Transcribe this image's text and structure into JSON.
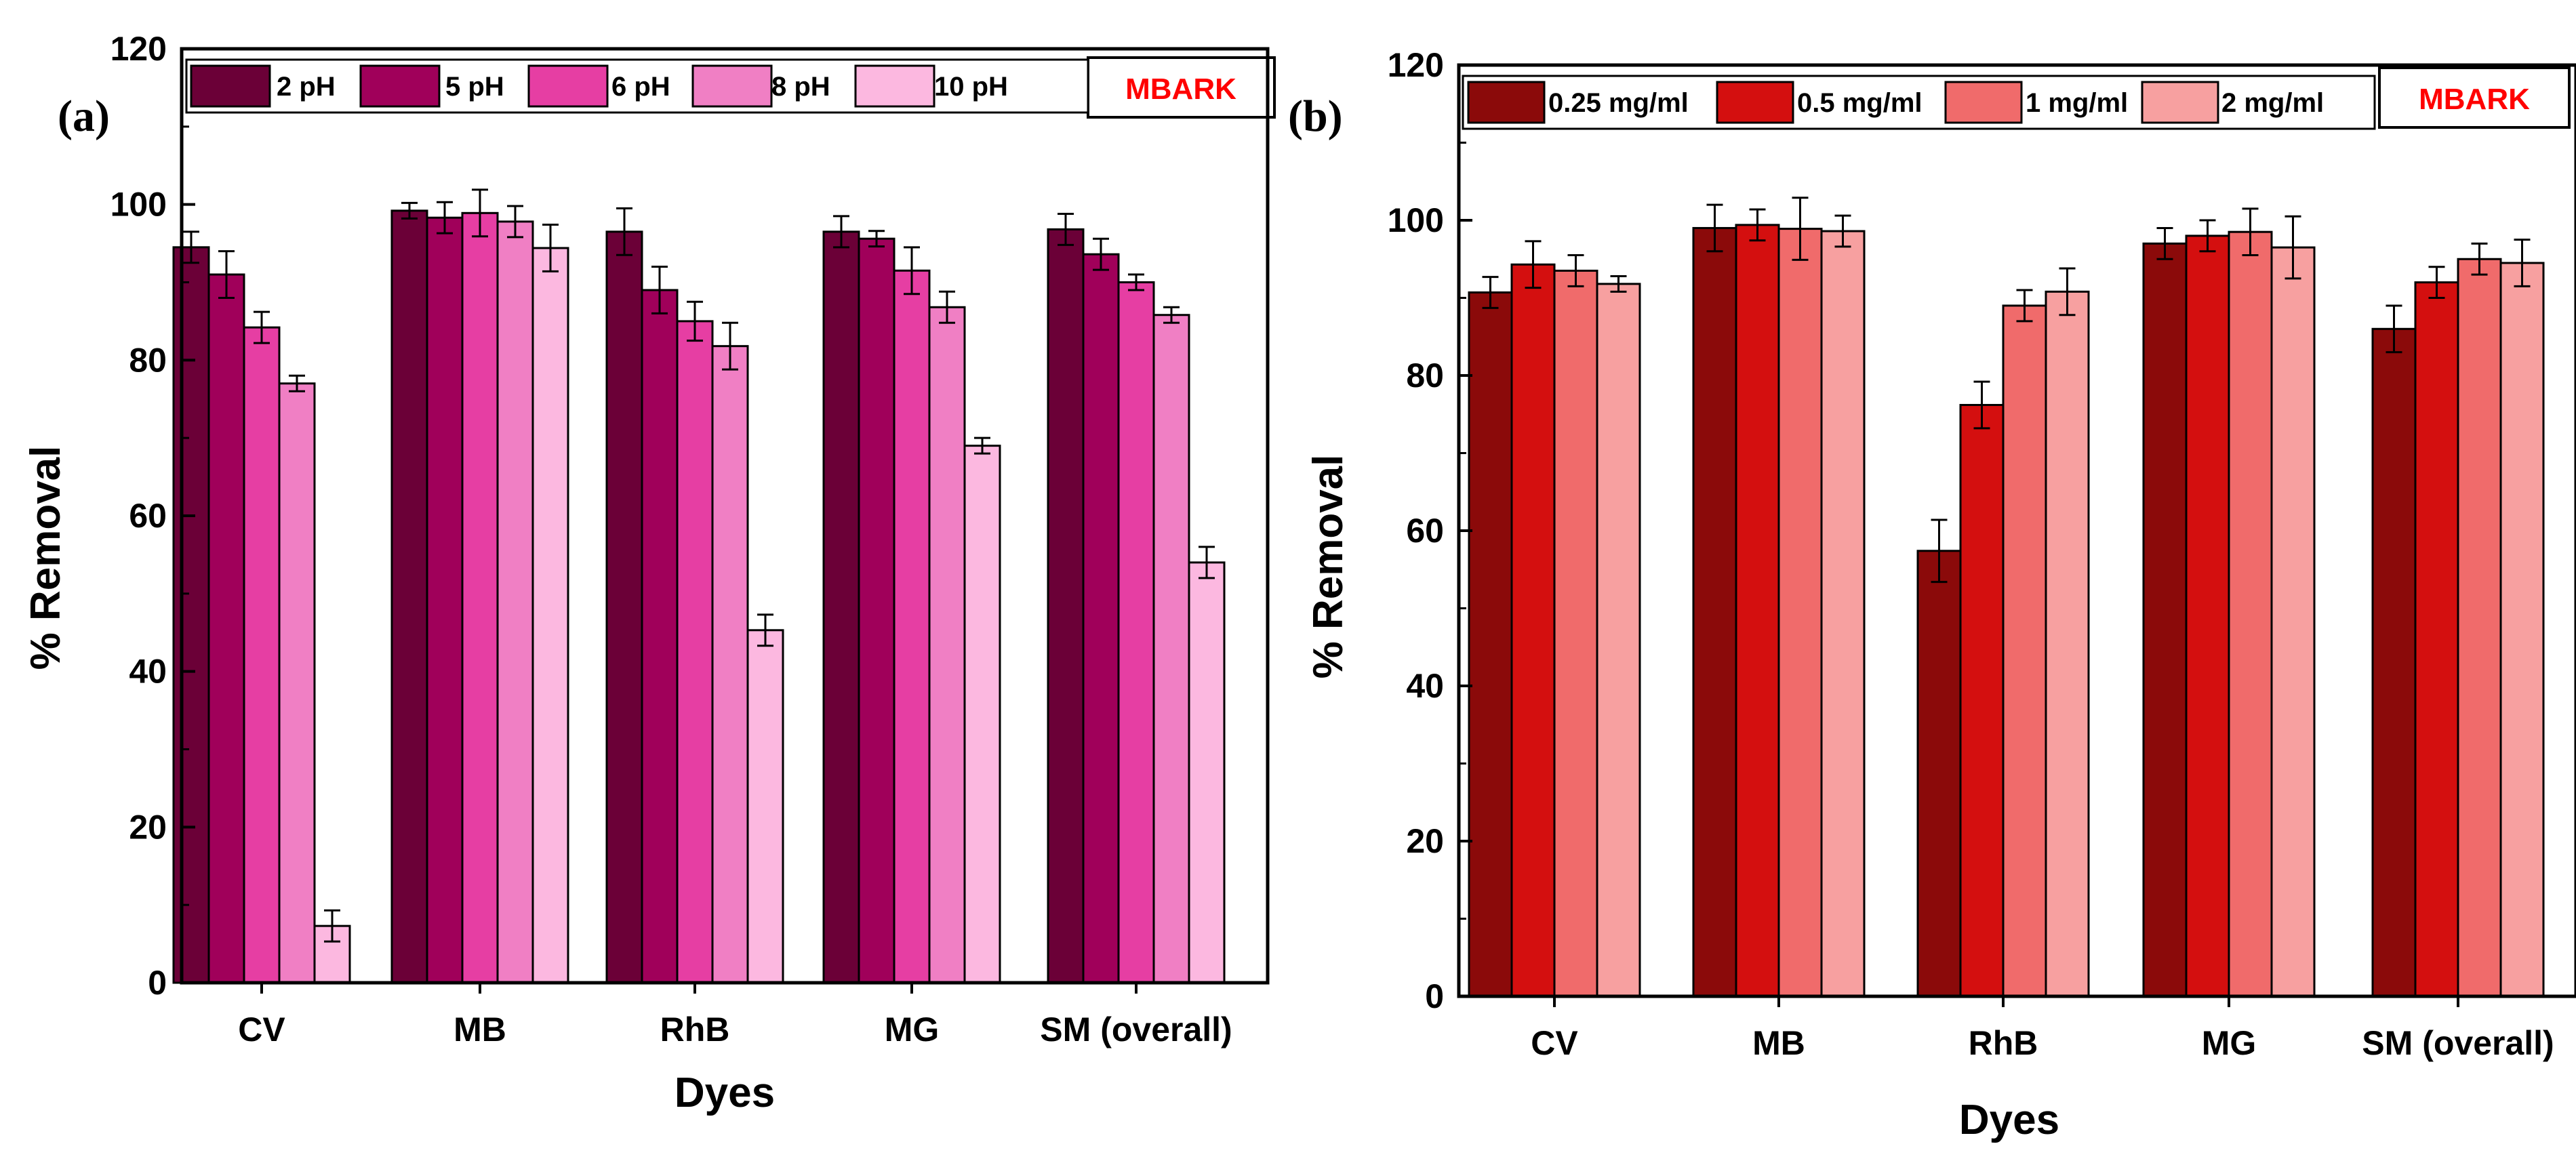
{
  "chart_data": [
    {
      "type": "bar",
      "panel_label": "(a)",
      "brand": "MBARK",
      "title": "",
      "xlabel": "Dyes",
      "ylabel": "% Removal",
      "ylim": [
        0,
        120
      ],
      "yticks": [
        0,
        20,
        40,
        60,
        80,
        100,
        120
      ],
      "categories": [
        "CV",
        "MB",
        "RhB",
        "MG",
        "SM (overall)"
      ],
      "series": [
        {
          "name": "2 pH",
          "color": "#6b0037",
          "values": [
            94.5,
            99.2,
            96.5,
            96.5,
            96.8
          ],
          "errors": [
            2.0,
            1.0,
            3.0,
            2.0,
            2.0
          ]
        },
        {
          "name": "5 pH",
          "color": "#a0005a",
          "values": [
            91.0,
            98.3,
            89.0,
            95.6,
            93.6
          ],
          "errors": [
            3.0,
            2.0,
            3.0,
            1.0,
            2.0
          ]
        },
        {
          "name": "6 pH",
          "color": "#e63ea3",
          "values": [
            84.2,
            98.9,
            85.0,
            91.5,
            90.0
          ],
          "errors": [
            2.0,
            3.0,
            2.5,
            3.0,
            1.0
          ]
        },
        {
          "name": "8 pH",
          "color": "#f07fc4",
          "values": [
            77.0,
            97.8,
            81.8,
            86.8,
            85.8
          ],
          "errors": [
            1.0,
            2.0,
            3.0,
            2.0,
            1.0
          ]
        },
        {
          "name": "10 pH",
          "color": "#fcb8e0",
          "values": [
            7.3,
            94.4,
            45.3,
            69.0,
            54.0
          ],
          "errors": [
            2.0,
            3.0,
            2.0,
            1.0,
            2.0
          ]
        }
      ],
      "legend": "top, inside plot area"
    },
    {
      "type": "bar",
      "panel_label": "(b)",
      "brand": "MBARK",
      "title": "",
      "xlabel": "Dyes",
      "ylabel": "% Removal",
      "ylim": [
        0,
        120
      ],
      "yticks": [
        0,
        20,
        40,
        60,
        80,
        100,
        120
      ],
      "categories": [
        "CV",
        "MB",
        "RhB",
        "MG",
        "SM (overall)"
      ],
      "series": [
        {
          "name": "0.25 mg/ml",
          "color": "#8b0a0a",
          "values": [
            90.7,
            99.0,
            57.4,
            97.0,
            86.0
          ],
          "errors": [
            2.0,
            3.0,
            4.0,
            2.0,
            3.0
          ]
        },
        {
          "name": "0.5 mg/ml",
          "color": "#d40f0f",
          "values": [
            94.3,
            99.4,
            76.2,
            98.0,
            92.0
          ],
          "errors": [
            3.0,
            2.0,
            3.0,
            2.0,
            2.0
          ]
        },
        {
          "name": "1 mg/ml",
          "color": "#f06b6b",
          "values": [
            93.5,
            98.9,
            89.0,
            98.5,
            95.0
          ],
          "errors": [
            2.0,
            4.0,
            2.0,
            3.0,
            2.0
          ]
        },
        {
          "name": "2 mg/ml",
          "color": "#f7a0a0",
          "values": [
            91.8,
            98.6,
            90.8,
            96.5,
            94.5
          ],
          "errors": [
            1.0,
            2.0,
            3.0,
            4.0,
            3.0
          ]
        }
      ],
      "legend": "top, inside plot area"
    }
  ]
}
